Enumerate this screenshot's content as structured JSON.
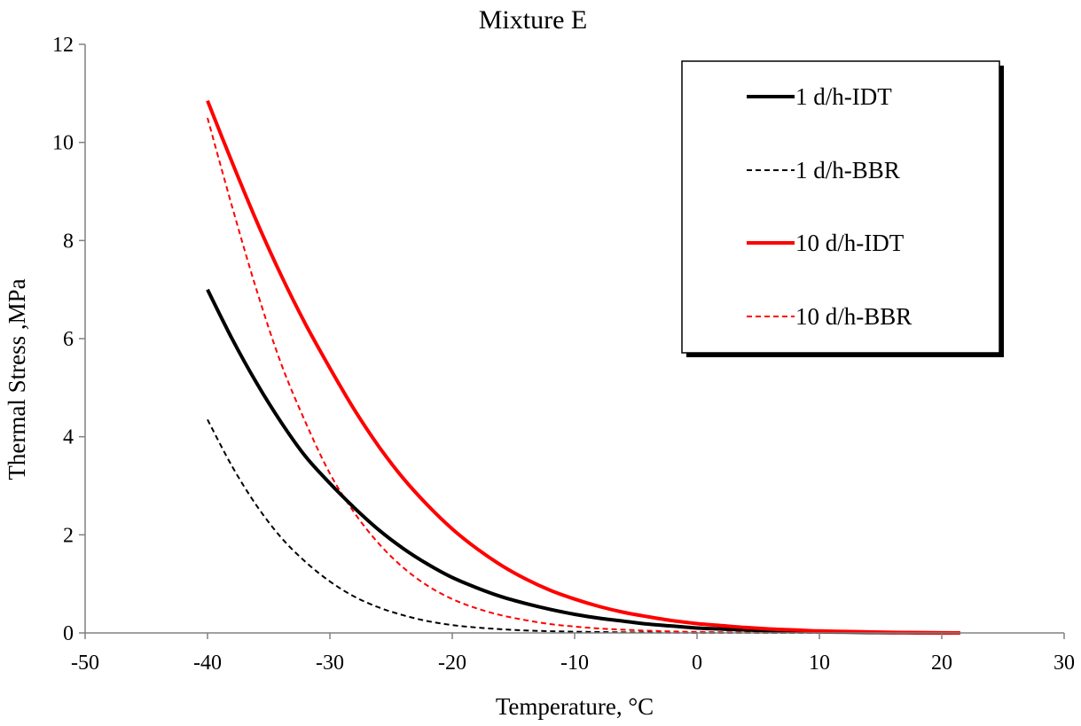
{
  "chart_data": {
    "type": "line",
    "title": "Mixture E",
    "xlabel": "Temperature, °C",
    "ylabel": "Thermal Stress ,MPa",
    "xlim": [
      -50,
      30
    ],
    "ylim": [
      0,
      12
    ],
    "xticks": [
      -50,
      -40,
      -30,
      -20,
      -10,
      0,
      10,
      20,
      30
    ],
    "yticks": [
      0,
      2,
      4,
      6,
      8,
      10,
      12
    ],
    "grid": false,
    "legend_position": "top-right",
    "series": [
      {
        "name": "1 d/h-IDT",
        "color": "#000000",
        "style": "solid",
        "width": "thick",
        "x": [
          -40,
          -38,
          -36,
          -34,
          -32,
          -30,
          -28,
          -26,
          -24,
          -22,
          -20,
          -18,
          -16,
          -14,
          -12,
          -10,
          -8,
          -6,
          -4,
          -2,
          0,
          2,
          4,
          6,
          8,
          10,
          12,
          14,
          16,
          18,
          20,
          21.5
        ],
        "y": [
          7.0,
          6.0,
          5.1,
          4.3,
          3.6,
          3.05,
          2.55,
          2.1,
          1.72,
          1.4,
          1.13,
          0.92,
          0.74,
          0.6,
          0.48,
          0.38,
          0.3,
          0.24,
          0.18,
          0.14,
          0.1,
          0.08,
          0.06,
          0.045,
          0.03,
          0.02,
          0.015,
          0.01,
          0.005,
          0.003,
          0.001,
          0.0
        ]
      },
      {
        "name": "1 d/h-BBR",
        "color": "#000000",
        "style": "dashed",
        "width": "thin",
        "x": [
          -40,
          -38,
          -36,
          -34,
          -32,
          -30,
          -28,
          -26,
          -24,
          -22,
          -20,
          -18,
          -16,
          -14,
          -12,
          -10,
          -8,
          -6,
          -4,
          -2,
          0,
          5,
          10,
          15,
          20,
          21.5
        ],
        "y": [
          4.35,
          3.4,
          2.6,
          1.95,
          1.45,
          1.05,
          0.74,
          0.52,
          0.36,
          0.24,
          0.16,
          0.11,
          0.075,
          0.05,
          0.035,
          0.025,
          0.018,
          0.012,
          0.008,
          0.005,
          0.003,
          0.001,
          0.0,
          0.0,
          0.0,
          0.0
        ]
      },
      {
        "name": "10 d/h-IDT",
        "color": "#ff0000",
        "style": "solid",
        "width": "thick",
        "x": [
          -40,
          -38,
          -36,
          -34,
          -32,
          -30,
          -28,
          -26,
          -24,
          -22,
          -20,
          -18,
          -16,
          -14,
          -12,
          -10,
          -8,
          -6,
          -4,
          -2,
          0,
          2,
          4,
          6,
          8,
          10,
          12,
          14,
          16,
          18,
          20,
          21.5
        ],
        "y": [
          10.85,
          9.6,
          8.4,
          7.3,
          6.3,
          5.4,
          4.55,
          3.8,
          3.15,
          2.6,
          2.12,
          1.72,
          1.38,
          1.1,
          0.87,
          0.69,
          0.54,
          0.42,
          0.33,
          0.25,
          0.19,
          0.15,
          0.11,
          0.08,
          0.06,
          0.04,
          0.03,
          0.02,
          0.012,
          0.006,
          0.002,
          0.0
        ]
      },
      {
        "name": "10 d/h-BBR",
        "color": "#ff0000",
        "style": "dashed",
        "width": "thin",
        "x": [
          -40,
          -38,
          -36,
          -34,
          -32,
          -30,
          -28,
          -26,
          -24,
          -22,
          -20,
          -18,
          -16,
          -14,
          -12,
          -10,
          -8,
          -6,
          -4,
          -2,
          0,
          5,
          10,
          15,
          20,
          21.5
        ],
        "y": [
          10.5,
          8.7,
          7.0,
          5.5,
          4.3,
          3.25,
          2.45,
          1.82,
          1.33,
          0.96,
          0.69,
          0.5,
          0.36,
          0.26,
          0.18,
          0.13,
          0.09,
          0.065,
          0.045,
          0.03,
          0.02,
          0.008,
          0.003,
          0.001,
          0.0,
          0.0
        ]
      }
    ]
  }
}
